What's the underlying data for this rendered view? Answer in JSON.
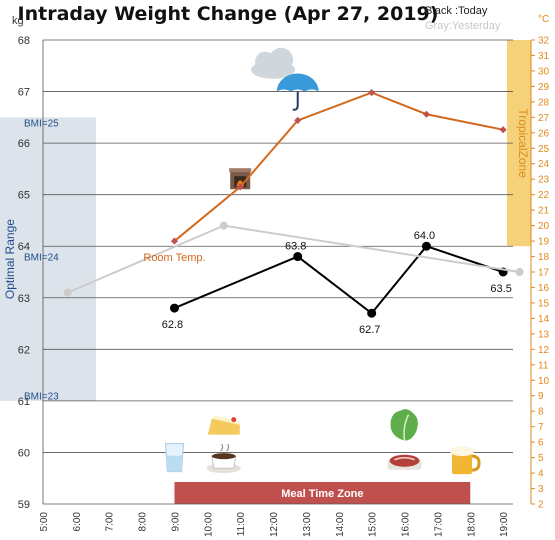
{
  "chart_data": {
    "type": "line",
    "title": "Intraday Weight Change (Apr 27, 2019)",
    "legend": {
      "today": "Black :Today",
      "yesterday": "Gray:Yesterday"
    },
    "y_unit_left": "kg",
    "y_unit_right": "°C",
    "ylim_left": [
      59,
      68
    ],
    "ylim_right": [
      2,
      32
    ],
    "y_ticks_left": [
      59,
      60,
      61,
      62,
      63,
      64,
      65,
      66,
      67,
      68
    ],
    "y_ticks_right": [
      2,
      3,
      4,
      5,
      6,
      7,
      8,
      9,
      10,
      11,
      12,
      13,
      14,
      15,
      16,
      17,
      18,
      19,
      20,
      21,
      22,
      23,
      24,
      25,
      26,
      27,
      28,
      29,
      30,
      31,
      32
    ],
    "x_ticks": [
      "5:00",
      "6:00",
      "7:00",
      "8:00",
      "9:00",
      "10:00",
      "11:00",
      "12:00",
      "13:00",
      "14:00",
      "15:00",
      "16:00",
      "17:00",
      "18:00",
      "19:00"
    ],
    "series": [
      {
        "name": "Today",
        "role": "weight",
        "color": "#000000",
        "points": [
          {
            "x": "9:00",
            "y": 62.8
          },
          {
            "x": "12:45",
            "y": 63.8
          },
          {
            "x": "15:00",
            "y": 62.7
          },
          {
            "x": "16:40",
            "y": 64.0
          },
          {
            "x": "19:00",
            "y": 63.5
          }
        ],
        "labels": [
          "62.8",
          "63.8",
          "62.7",
          "64.0",
          "63.5"
        ]
      },
      {
        "name": "Yesterday",
        "role": "weight",
        "color": "#cccccc",
        "points": [
          {
            "x": "5:45",
            "y": 63.1
          },
          {
            "x": "10:30",
            "y": 64.4
          },
          {
            "x": "19:30",
            "y": 63.5
          }
        ]
      },
      {
        "name": "Room Temp.",
        "role": "temperature",
        "color": "#d2691e",
        "points": [
          {
            "x": "9:00",
            "y": 19.0
          },
          {
            "x": "11:00",
            "y": 22.5
          },
          {
            "x": "12:45",
            "y": 26.8
          },
          {
            "x": "15:00",
            "y": 28.6
          },
          {
            "x": "16:40",
            "y": 27.2
          },
          {
            "x": "19:00",
            "y": 26.2
          }
        ]
      }
    ],
    "bands": {
      "optimal": {
        "label": "Optimal Range",
        "ymin": 61,
        "ymax": 66.5,
        "color": "#dce3ea"
      },
      "tropical": {
        "label": "TropicalZone",
        "ymin": 64,
        "ymax": 68,
        "color": "#f5d27a"
      },
      "meal": {
        "label": "Meal Time Zone",
        "xmin": "9:00",
        "xmax": "18:00",
        "color": "#c0504d"
      }
    },
    "bmi_marks": [
      {
        "label": "BMI=25",
        "y": 66.4
      },
      {
        "label": "BMI=24",
        "y": 63.8
      },
      {
        "label": "BMI=23",
        "y": 61.1
      }
    ],
    "icons": [
      {
        "name": "cloud-icon",
        "x": "12:00",
        "y": 67.5
      },
      {
        "name": "umbrella-icon",
        "x": "12:45",
        "y": 67.0
      },
      {
        "name": "fireplace-icon",
        "x": "11:00",
        "y": 65.3
      },
      {
        "name": "cake-icon",
        "x": "10:30",
        "y": 60.5
      },
      {
        "name": "water-glass-icon",
        "x": "9:00",
        "y": 59.9
      },
      {
        "name": "coffee-icon",
        "x": "10:30",
        "y": 59.85
      },
      {
        "name": "lettuce-icon",
        "x": "16:00",
        "y": 60.5
      },
      {
        "name": "steak-icon",
        "x": "16:00",
        "y": 59.8
      },
      {
        "name": "beer-icon",
        "x": "17:45",
        "y": 59.85
      }
    ],
    "grid": true
  }
}
